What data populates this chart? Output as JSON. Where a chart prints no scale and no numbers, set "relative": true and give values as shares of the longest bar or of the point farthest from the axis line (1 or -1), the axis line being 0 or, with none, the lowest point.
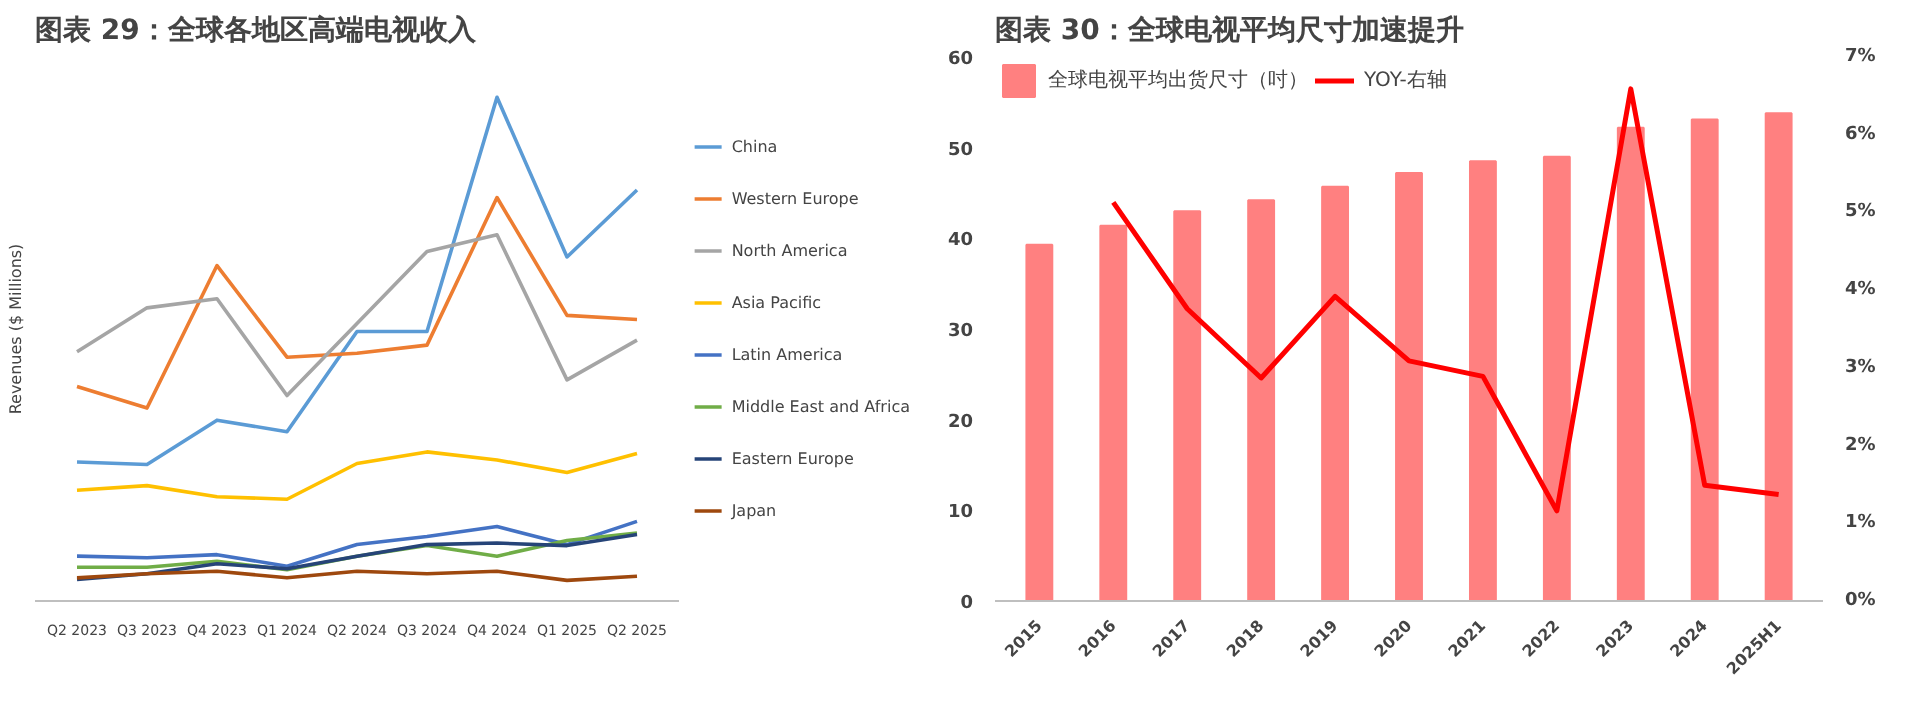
{
  "chart_data": [
    {
      "type": "line",
      "title": "图表 29：全球各地区高端电视收入",
      "ylabel": "Revenues ($ Millions)",
      "relative": true,
      "legend": "right",
      "grid": false,
      "categories": [
        "Q2 2023",
        "Q3 2023",
        "Q4 2023",
        "Q1 2024",
        "Q2 2024",
        "Q3 2024",
        "Q4 2024",
        "Q1 2025",
        "Q2 2025"
      ],
      "series": [
        {
          "name": "China",
          "color": "#5b9bd5",
          "values": [
            0.276,
            0.271,
            0.359,
            0.336,
            0.535,
            0.535,
            1,
            0.683,
            0.816
          ]
        },
        {
          "name": "Western Europe",
          "color": "#ed7d31",
          "values": [
            0.426,
            0.383,
            0.666,
            0.484,
            0.492,
            0.508,
            0.801,
            0.567,
            0.559
          ]
        },
        {
          "name": "North America",
          "color": "#a5a5a5",
          "values": [
            0.495,
            0.582,
            0.6,
            0.408,
            0.551,
            0.694,
            0.727,
            0.439,
            0.518
          ]
        },
        {
          "name": "Asia Pacific",
          "color": "#ffc000",
          "values": [
            0.22,
            0.229,
            0.207,
            0.202,
            0.273,
            0.296,
            0.28,
            0.255,
            0.293
          ]
        },
        {
          "name": "Latin America",
          "color": "#4472c4",
          "values": [
            0.089,
            0.086,
            0.092,
            0.069,
            0.112,
            0.128,
            0.148,
            0.112,
            0.158
          ]
        },
        {
          "name": "Middle East and Africa",
          "color": "#70ad47",
          "values": [
            0.067,
            0.067,
            0.079,
            0.062,
            0.089,
            0.11,
            0.089,
            0.12,
            0.135
          ]
        },
        {
          "name": "Eastern Europe",
          "color": "#264478",
          "values": [
            0.043,
            0.054,
            0.074,
            0.064,
            0.089,
            0.112,
            0.115,
            0.11,
            0.132
          ]
        },
        {
          "name": "Japan",
          "color": "#9e480e",
          "values": [
            0.046,
            0.054,
            0.059,
            0.046,
            0.059,
            0.054,
            0.059,
            0.041,
            0.049
          ]
        }
      ]
    },
    {
      "type": "bar",
      "title": "图表 30：全球电视平均尺寸加速提升",
      "legend": "top",
      "grid": false,
      "categories": [
        "2015",
        "2016",
        "2017",
        "2018",
        "2019",
        "2020",
        "2021",
        "2022",
        "2023",
        "2024",
        "2025H1"
      ],
      "ylim": [
        0,
        60
      ],
      "yticks": [
        0,
        10,
        20,
        30,
        40,
        50,
        60
      ],
      "y2lim": [
        0,
        7
      ],
      "y2ticks": [
        {
          "value": 0,
          "label": "0%"
        },
        {
          "value": 1,
          "label": "1%"
        },
        {
          "value": 2,
          "label": "2%"
        },
        {
          "value": 3,
          "label": "3%"
        },
        {
          "value": 4,
          "label": "4%"
        },
        {
          "value": 5,
          "label": "5%"
        },
        {
          "value": 6,
          "label": "6%"
        },
        {
          "value": 7,
          "label": "7%"
        }
      ],
      "series": [
        {
          "name": "全球电视平均出货尺寸（吋）",
          "type": "bar",
          "color": "#ff8080",
          "values": [
            39.3,
            41.4,
            43.0,
            44.2,
            45.7,
            47.2,
            48.5,
            49.0,
            52.2,
            53.1,
            53.8
          ]
        },
        {
          "name": "YOY-右轴",
          "type": "line",
          "axis": "y2",
          "color": "#ff0000",
          "values": [
            null,
            5.13,
            3.76,
            2.87,
            3.92,
            3.09,
            2.89,
            1.16,
            6.59,
            1.49,
            1.37
          ]
        }
      ]
    }
  ]
}
